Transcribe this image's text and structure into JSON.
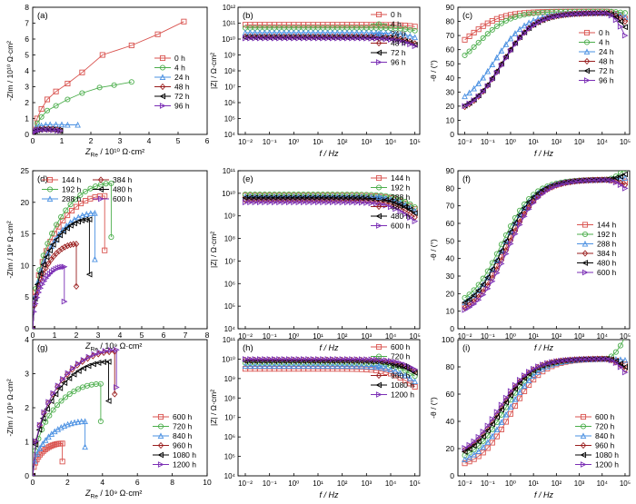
{
  "colors": {
    "red": "#d9534f",
    "green": "#4cae4c",
    "blue": "#4a90e2",
    "darkred": "#9a1f1f",
    "black": "#000000",
    "purple": "#7b2fb5"
  },
  "chart_data": [
    {
      "id": "a",
      "panel_label": "(a)",
      "type": "scatter",
      "kind": "nyquist",
      "xlabel_main": "Z",
      "xlabel_sub": "Re",
      "xlabel_rest": " / 10¹⁰ Ω·cm²",
      "ylabel": "-Z_Im / 10¹⁰ Ω·cm²",
      "xlim": [
        0,
        6
      ],
      "ylim": [
        0,
        8
      ],
      "xticks": [
        0,
        1,
        2,
        3,
        4,
        5,
        6
      ],
      "yticks": [
        0,
        1,
        2,
        3,
        4,
        5,
        6,
        7,
        8
      ],
      "legend_position": "center-right",
      "series": [
        {
          "name": "0 h",
          "color": "red",
          "marker": "square",
          "pts": [
            [
              0.05,
              0.3
            ],
            [
              0.15,
              1.0
            ],
            [
              0.3,
              1.6
            ],
            [
              0.5,
              2.2
            ],
            [
              0.8,
              2.7
            ],
            [
              1.2,
              3.2
            ],
            [
              1.7,
              3.9
            ],
            [
              2.4,
              5.0
            ],
            [
              3.4,
              5.6
            ],
            [
              4.3,
              6.3
            ],
            [
              5.2,
              7.1
            ]
          ]
        },
        {
          "name": "4 h",
          "color": "green",
          "marker": "circle",
          "pts": [
            [
              0.05,
              0.2
            ],
            [
              0.15,
              0.7
            ],
            [
              0.3,
              1.1
            ],
            [
              0.5,
              1.5
            ],
            [
              0.8,
              1.8
            ],
            [
              1.2,
              2.2
            ],
            [
              1.7,
              2.6
            ],
            [
              2.3,
              2.95
            ],
            [
              2.8,
              3.1
            ],
            [
              3.4,
              3.3
            ]
          ]
        },
        {
          "name": "24 h",
          "color": "blue",
          "marker": "triangle",
          "pts": [
            [
              0.05,
              0.25
            ],
            [
              0.1,
              0.4
            ],
            [
              0.2,
              0.5
            ],
            [
              0.3,
              0.55
            ],
            [
              0.45,
              0.6
            ],
            [
              0.6,
              0.62
            ],
            [
              0.8,
              0.62
            ],
            [
              1.0,
              0.62
            ],
            [
              1.2,
              0.6
            ],
            [
              1.55,
              0.6
            ]
          ]
        },
        {
          "name": "48 h",
          "color": "darkred",
          "marker": "diamond",
          "pts": [
            [
              0.03,
              0.15
            ],
            [
              0.08,
              0.25
            ],
            [
              0.15,
              0.3
            ],
            [
              0.25,
              0.33
            ],
            [
              0.4,
              0.35
            ],
            [
              0.55,
              0.34
            ],
            [
              0.7,
              0.33
            ],
            [
              0.85,
              0.3
            ],
            [
              0.95,
              0.27
            ]
          ]
        },
        {
          "name": "72 h",
          "color": "black",
          "marker": "ltriangle",
          "pts": [
            [
              0.03,
              0.15
            ],
            [
              0.08,
              0.22
            ],
            [
              0.15,
              0.27
            ],
            [
              0.25,
              0.3
            ],
            [
              0.4,
              0.32
            ],
            [
              0.55,
              0.31
            ],
            [
              0.7,
              0.3
            ],
            [
              0.85,
              0.27
            ],
            [
              0.95,
              0.24
            ]
          ]
        },
        {
          "name": "96 h",
          "color": "purple",
          "marker": "rtriangle",
          "pts": [
            [
              0.03,
              0.12
            ],
            [
              0.08,
              0.2
            ],
            [
              0.15,
              0.25
            ],
            [
              0.25,
              0.28
            ],
            [
              0.4,
              0.29
            ],
            [
              0.55,
              0.28
            ],
            [
              0.7,
              0.27
            ],
            [
              0.85,
              0.24
            ],
            [
              0.95,
              0.22
            ]
          ]
        }
      ]
    },
    {
      "id": "b",
      "panel_label": "(b)",
      "type": "line",
      "kind": "bode_mod",
      "xlabel": "f / Hz",
      "ylabel": "|Z| / Ω·cm²",
      "xlim_log": [
        -2.3,
        5.2
      ],
      "ylim_log": [
        4,
        12
      ],
      "xtick_exp": [
        -2,
        -1,
        0,
        1,
        2,
        3,
        4,
        5
      ],
      "ytick_exp": [
        4,
        5,
        6,
        7,
        8,
        9,
        10,
        11,
        12
      ],
      "legend_position": "top-right",
      "series": [
        {
          "name": "0 h",
          "color": "red",
          "marker": "square",
          "start": 10.9
        },
        {
          "name": "4 h",
          "color": "green",
          "marker": "circle",
          "start": 10.7
        },
        {
          "name": "24 h",
          "color": "blue",
          "marker": "triangle",
          "start": 10.4
        },
        {
          "name": "48 h",
          "color": "darkred",
          "marker": "diamond",
          "start": 10.15
        },
        {
          "name": "72 h",
          "color": "black",
          "marker": "ltriangle",
          "start": 10.1
        },
        {
          "name": "96 h",
          "color": "purple",
          "marker": "rtriangle",
          "start": 10.05
        }
      ]
    },
    {
      "id": "c",
      "panel_label": "(c)",
      "type": "line",
      "kind": "bode_phase",
      "xlabel": "f / Hz",
      "ylabel": "-θ / (°)",
      "xlim_log": [
        -2.3,
        5.2
      ],
      "ylim": [
        0,
        90
      ],
      "xtick_exp": [
        -2,
        -1,
        0,
        1,
        2,
        3,
        4,
        5
      ],
      "yticks": [
        0,
        10,
        20,
        30,
        40,
        50,
        60,
        70,
        80,
        90
      ],
      "legend_position": "center-right",
      "series": [
        {
          "name": "0 h",
          "color": "red",
          "marker": "square",
          "low": 52,
          "plateau": 87,
          "fc": -1.8,
          "end": 82
        },
        {
          "name": "4 h",
          "color": "green",
          "marker": "circle",
          "low": 43,
          "plateau": 87,
          "fc": -1.4,
          "end": 86
        },
        {
          "name": "24 h",
          "color": "blue",
          "marker": "triangle",
          "low": 18,
          "plateau": 86,
          "fc": -0.7,
          "end": 83
        },
        {
          "name": "48 h",
          "color": "darkred",
          "marker": "diamond",
          "low": 13,
          "plateau": 86,
          "fc": -0.4,
          "end": 80
        },
        {
          "name": "72 h",
          "color": "black",
          "marker": "ltriangle",
          "low": 14,
          "plateau": 86,
          "fc": -0.4,
          "end": 76
        },
        {
          "name": "96 h",
          "color": "purple",
          "marker": "rtriangle",
          "low": 14,
          "plateau": 86,
          "fc": -0.35,
          "end": 70
        }
      ]
    },
    {
      "id": "d",
      "panel_label": "(d)",
      "type": "scatter",
      "kind": "nyquist",
      "xlabel_main": "Z",
      "xlabel_sub": "Re",
      "xlabel_rest": " / 10⁹ Ω·cm²",
      "ylabel": "-Z_Im / 10⁹ Ω·cm²",
      "xlim": [
        0,
        8
      ],
      "ylim": [
        0,
        25
      ],
      "xticks": [
        0,
        1,
        2,
        3,
        4,
        5,
        6,
        7,
        8
      ],
      "yticks": [
        0,
        5,
        10,
        15,
        20,
        25
      ],
      "legend_position": "top-left",
      "series": [
        {
          "name": "144 h",
          "color": "red",
          "marker": "square",
          "arc": [
            6.6,
            21.0,
            3.3,
            12.4
          ]
        },
        {
          "name": "192 h",
          "color": "green",
          "marker": "circle",
          "arc": [
            7.2,
            23.0,
            3.6,
            14.5
          ]
        },
        {
          "name": "288 h",
          "color": "blue",
          "marker": "triangle",
          "arc": [
            5.7,
            18.3,
            2.85,
            11.0
          ]
        },
        {
          "name": "384 h",
          "color": "darkred",
          "marker": "diamond",
          "arc": [
            4.0,
            13.4,
            2.0,
            6.7
          ]
        },
        {
          "name": "480 h",
          "color": "black",
          "marker": "ltriangle",
          "arc": [
            5.2,
            17.3,
            2.6,
            8.6
          ]
        },
        {
          "name": "600 h",
          "color": "purple",
          "marker": "rtriangle",
          "arc": [
            2.9,
            9.8,
            1.45,
            4.3
          ]
        }
      ]
    },
    {
      "id": "e",
      "panel_label": "(e)",
      "type": "line",
      "kind": "bode_mod",
      "xlabel": "f / Hz",
      "ylabel": "|Z| / Ω·cm²",
      "xlim_log": [
        -2.3,
        5.2
      ],
      "ylim_log": [
        4,
        11
      ],
      "xtick_exp": [
        -2,
        -1,
        0,
        1,
        2,
        3,
        4,
        5
      ],
      "ytick_exp": [
        4,
        5,
        6,
        7,
        8,
        9,
        10,
        11
      ],
      "legend_position": "top-right",
      "series": [
        {
          "name": "144 h",
          "color": "red",
          "marker": "square",
          "start": 9.9
        },
        {
          "name": "192 h",
          "color": "green",
          "marker": "circle",
          "start": 9.95
        },
        {
          "name": "288 h",
          "color": "blue",
          "marker": "triangle",
          "start": 9.85
        },
        {
          "name": "384 h",
          "color": "darkred",
          "marker": "diamond",
          "start": 9.7
        },
        {
          "name": "480 h",
          "color": "black",
          "marker": "ltriangle",
          "start": 9.8
        },
        {
          "name": "600 h",
          "color": "purple",
          "marker": "rtriangle",
          "start": 9.6
        }
      ]
    },
    {
      "id": "f",
      "panel_label": "(f)",
      "type": "line",
      "kind": "bode_phase",
      "xlabel": "f / Hz",
      "ylabel": "-θ / (°)",
      "xlim_log": [
        -2.3,
        5.2
      ],
      "ylim": [
        0,
        90
      ],
      "xtick_exp": [
        -2,
        -1,
        0,
        1,
        2,
        3,
        4,
        5
      ],
      "yticks": [
        0,
        10,
        20,
        30,
        40,
        50,
        60,
        70,
        80,
        90
      ],
      "legend_position": "center-right",
      "series": [
        {
          "name": "144 h",
          "color": "red",
          "marker": "square",
          "low": 8,
          "plateau": 85,
          "fc": -0.2,
          "end": 84
        },
        {
          "name": "192 h",
          "color": "green",
          "marker": "circle",
          "low": 11,
          "plateau": 85,
          "fc": -0.4,
          "end": 91
        },
        {
          "name": "288 h",
          "color": "blue",
          "marker": "triangle",
          "low": 9,
          "plateau": 85,
          "fc": -0.3,
          "end": 86
        },
        {
          "name": "384 h",
          "color": "darkred",
          "marker": "diamond",
          "low": 7,
          "plateau": 85,
          "fc": -0.15,
          "end": 82
        },
        {
          "name": "480 h",
          "color": "black",
          "marker": "ltriangle",
          "low": 9,
          "plateau": 85,
          "fc": -0.3,
          "end": 88
        },
        {
          "name": "600 h",
          "color": "purple",
          "marker": "rtriangle",
          "low": 6,
          "plateau": 85,
          "fc": -0.1,
          "end": 80
        }
      ]
    },
    {
      "id": "g",
      "panel_label": "(g)",
      "type": "scatter",
      "kind": "nyquist",
      "xlabel_main": "Z",
      "xlabel_sub": "Re",
      "xlabel_rest": " / 10⁹ Ω·cm²",
      "ylabel": "-Z_Im / 10⁹ Ω·cm²",
      "xlim": [
        0,
        10
      ],
      "ylim": [
        0,
        4
      ],
      "xticks": [
        0,
        2,
        4,
        6,
        8,
        10
      ],
      "yticks": [
        0,
        1,
        2,
        3,
        4
      ],
      "legend_position": "bottom-right",
      "series": [
        {
          "name": "600 h",
          "color": "red",
          "marker": "square",
          "arc": [
            3.4,
            0.95,
            1.7,
            0.42
          ]
        },
        {
          "name": "720 h",
          "color": "green",
          "marker": "circle",
          "arc": [
            7.8,
            2.7,
            3.9,
            1.6
          ]
        },
        {
          "name": "840 h",
          "color": "blue",
          "marker": "triangle",
          "arc": [
            6.0,
            1.6,
            3.0,
            0.85
          ]
        },
        {
          "name": "960 h",
          "color": "darkred",
          "marker": "diamond",
          "arc": [
            9.4,
            3.65,
            4.7,
            2.4
          ]
        },
        {
          "name": "1080 h",
          "color": "black",
          "marker": "ltriangle",
          "arc": [
            8.7,
            3.35,
            4.35,
            2.2
          ]
        },
        {
          "name": "1200 h",
          "color": "purple",
          "marker": "rtriangle",
          "arc": [
            9.6,
            3.7,
            4.8,
            2.6
          ]
        }
      ]
    },
    {
      "id": "h",
      "panel_label": "(h)",
      "type": "line",
      "kind": "bode_mod",
      "xlabel": "f / Hz",
      "ylabel": "|Z| / Ω·cm²",
      "xlim_log": [
        -2.3,
        5.2
      ],
      "ylim_log": [
        4,
        11
      ],
      "xtick_exp": [
        -2,
        -1,
        0,
        1,
        2,
        3,
        4,
        5
      ],
      "ytick_exp": [
        4,
        5,
        6,
        7,
        8,
        9,
        10,
        11
      ],
      "legend_position": "top-right",
      "series": [
        {
          "name": "600 h",
          "color": "red",
          "marker": "square",
          "start": 9.5
        },
        {
          "name": "720 h",
          "color": "green",
          "marker": "circle",
          "start": 9.8
        },
        {
          "name": "840 h",
          "color": "blue",
          "marker": "triangle",
          "start": 9.65
        },
        {
          "name": "960 h",
          "color": "darkred",
          "marker": "diamond",
          "start": 9.95
        },
        {
          "name": "1080 h",
          "color": "black",
          "marker": "ltriangle",
          "start": 9.9
        },
        {
          "name": "1200 h",
          "color": "purple",
          "marker": "rtriangle",
          "start": 10.0
        }
      ]
    },
    {
      "id": "i",
      "panel_label": "(i)",
      "type": "line",
      "kind": "bode_phase",
      "xlabel": "f / Hz",
      "ylabel": "-θ / (°)",
      "xlim_log": [
        -2.3,
        5.2
      ],
      "ylim": [
        0,
        100
      ],
      "xtick_exp": [
        -2,
        -1,
        0,
        1,
        2,
        3,
        4,
        5
      ],
      "yticks": [
        0,
        20,
        40,
        60,
        80,
        100
      ],
      "legend_position": "bottom-right",
      "series": [
        {
          "name": "600 h",
          "color": "red",
          "marker": "square",
          "low": 5,
          "plateau": 86,
          "fc": 0.0,
          "end": 82
        },
        {
          "name": "720 h",
          "color": "green",
          "marker": "circle",
          "low": 9,
          "plateau": 86,
          "fc": -0.3,
          "end": 102
        },
        {
          "name": "840 h",
          "color": "blue",
          "marker": "triangle",
          "low": 7,
          "plateau": 86,
          "fc": -0.15,
          "end": 85
        },
        {
          "name": "960 h",
          "color": "darkred",
          "marker": "diamond",
          "low": 12,
          "plateau": 86,
          "fc": -0.45,
          "end": 78
        },
        {
          "name": "1080 h",
          "color": "black",
          "marker": "ltriangle",
          "low": 11,
          "plateau": 86,
          "fc": -0.4,
          "end": 80
        },
        {
          "name": "1200 h",
          "color": "purple",
          "marker": "rtriangle",
          "low": 13,
          "plateau": 86,
          "fc": -0.5,
          "end": 76
        }
      ]
    }
  ]
}
